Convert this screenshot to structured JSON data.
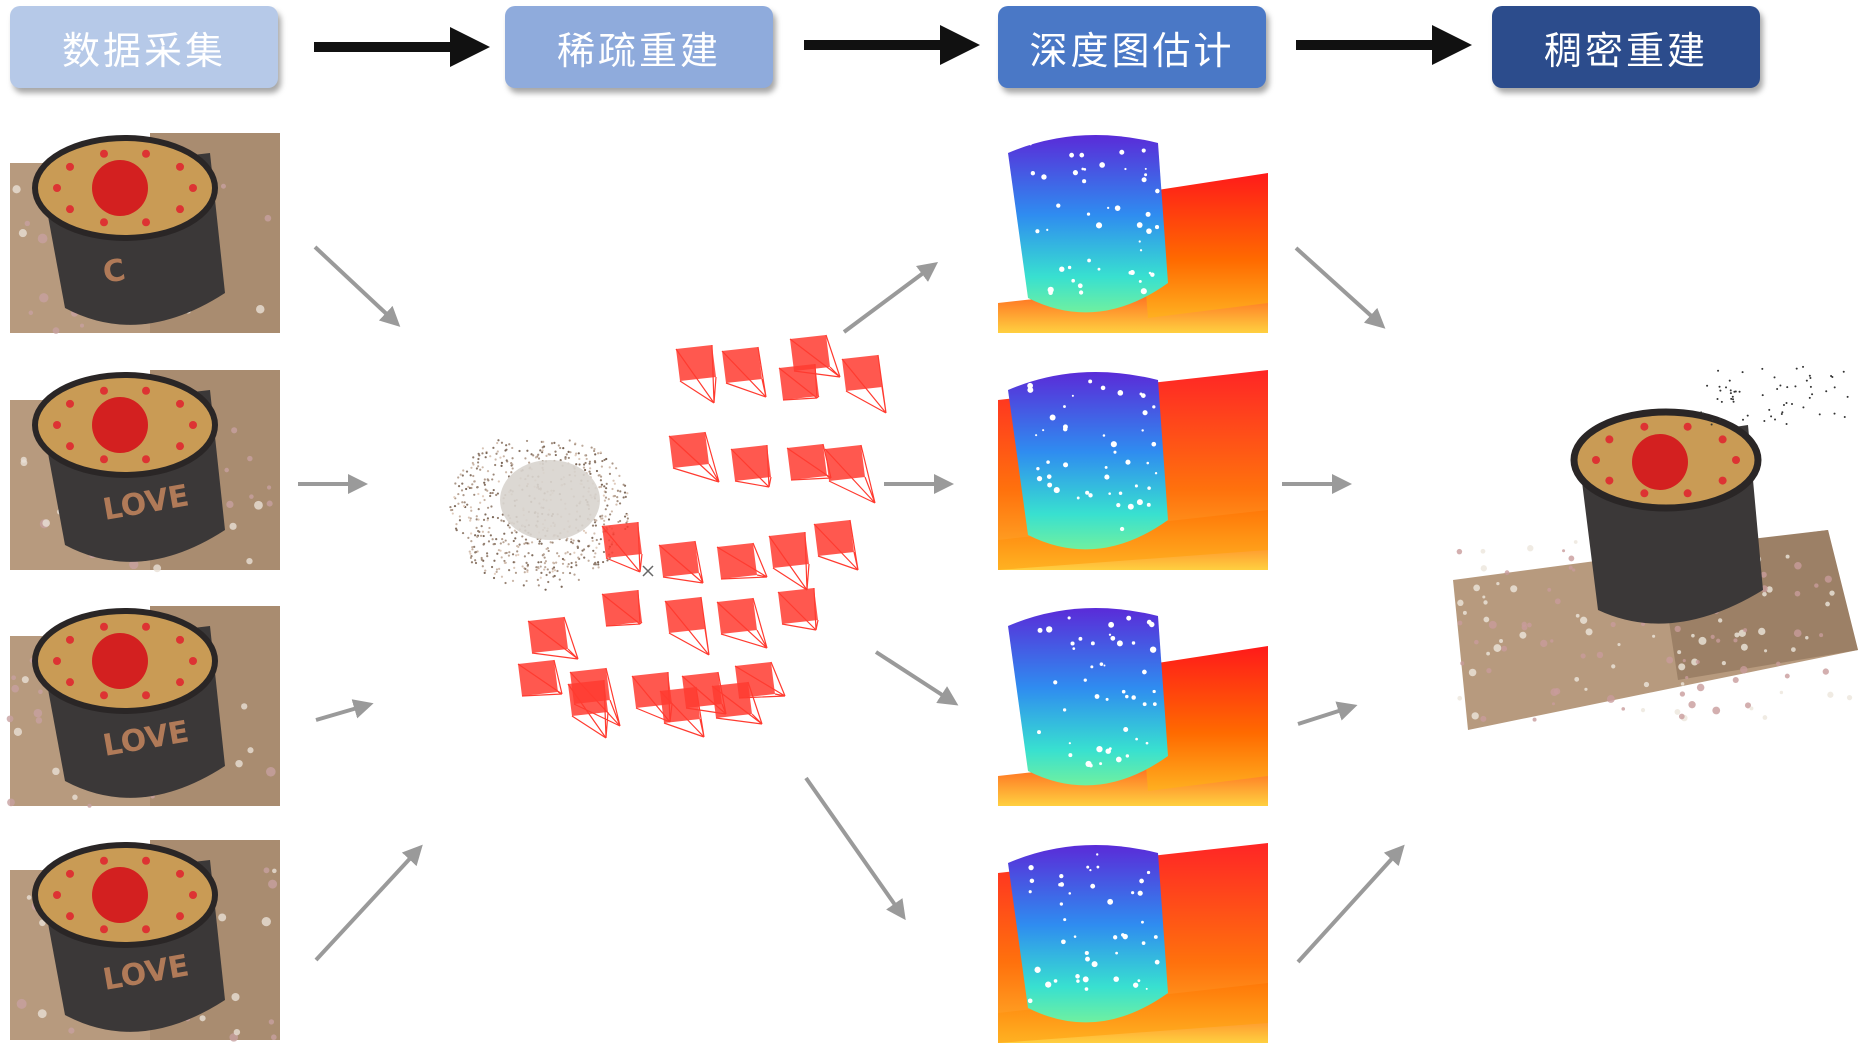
{
  "stages": [
    {
      "label": "数据采集",
      "color": "#b6c9e8"
    },
    {
      "label": "稀疏重建",
      "color": "#8fabdc"
    },
    {
      "label": "深度图估计",
      "color": "#4a78c6"
    },
    {
      "label": "稠密重建",
      "color": "#2c4c8c"
    }
  ],
  "input_images": [
    {
      "label": "C"
    },
    {
      "label": "LOVE"
    },
    {
      "label": "LOVE"
    },
    {
      "label": "LOVE"
    }
  ],
  "colors": {
    "camera": "#ff3b30",
    "arrow_main": "#111111",
    "arrow_flow": "#9a9a9a",
    "brick": "#b79a7e",
    "cup": "#3b3838",
    "lid": "#c99b55"
  }
}
